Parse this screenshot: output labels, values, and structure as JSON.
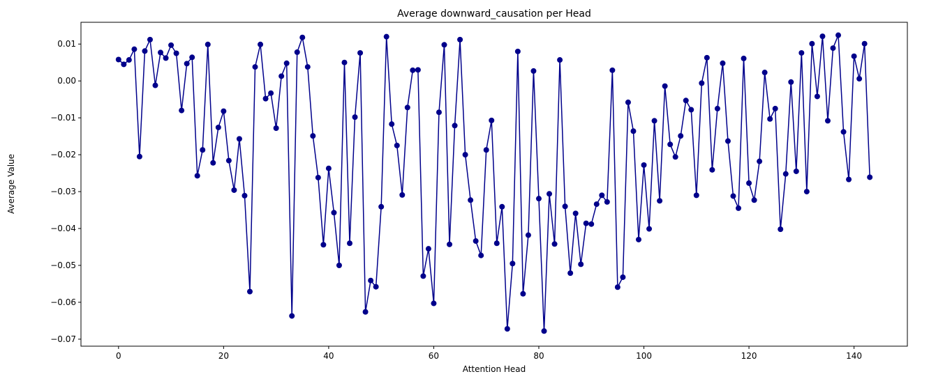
{
  "chart_data": {
    "type": "line",
    "title": "Average downward_causation per Head",
    "xlabel": "Attention Head",
    "ylabel": "Average Value",
    "xlim": [
      -7.15,
      150.15
    ],
    "ylim": [
      -0.0719,
      0.0159
    ],
    "xticks": [
      0,
      20,
      40,
      60,
      80,
      100,
      120,
      140
    ],
    "yticks": [
      -0.07,
      -0.06,
      -0.05,
      -0.04,
      -0.03,
      -0.02,
      -0.01,
      0.0,
      0.01
    ],
    "ytick_labels": [
      "−0.07",
      "−0.06",
      "−0.05",
      "−0.04",
      "−0.03",
      "−0.02",
      "−0.01",
      "0.00",
      "0.01"
    ],
    "xtick_labels": [
      "0",
      "20",
      "40",
      "60",
      "80",
      "100",
      "120",
      "140"
    ],
    "grid": false,
    "marker": "circle",
    "color": "#00008b",
    "series": [
      {
        "x_start": 0,
        "values": [
          0.0058,
          0.0045,
          0.0057,
          0.0086,
          -0.0205,
          0.0081,
          0.0112,
          -0.0012,
          0.0077,
          0.0062,
          0.0097,
          0.0075,
          -0.008,
          0.0047,
          0.0064,
          -0.0257,
          -0.0187,
          0.0099,
          -0.0222,
          -0.0126,
          -0.0082,
          -0.0216,
          -0.0296,
          -0.0157,
          -0.0311,
          -0.0571,
          0.0038,
          0.0099,
          -0.0048,
          -0.0033,
          -0.0128,
          0.0013,
          0.0048,
          -0.0637,
          0.0078,
          0.0118,
          0.0038,
          -0.0149,
          -0.0262,
          -0.0444,
          -0.0237,
          -0.0357,
          -0.05,
          0.005,
          -0.044,
          -0.0098,
          0.0076,
          -0.0626,
          -0.0541,
          -0.0558,
          -0.0341,
          0.012,
          -0.0117,
          -0.0175,
          -0.0309,
          -0.0072,
          0.0029,
          0.003,
          -0.0529,
          -0.0455,
          -0.0603,
          -0.0085,
          0.0098,
          -0.0443,
          -0.0121,
          0.0112,
          -0.02,
          -0.0323,
          -0.0434,
          -0.0473,
          -0.0187,
          -0.0107,
          -0.044,
          -0.0341,
          -0.0672,
          -0.0495,
          0.008,
          -0.0577,
          -0.0418,
          0.0027,
          -0.0319,
          -0.0678,
          -0.0306,
          -0.0442,
          0.0057,
          -0.034,
          -0.0521,
          -0.0359,
          -0.0497,
          -0.0386,
          -0.0388,
          -0.0334,
          -0.031,
          -0.0328,
          0.0029,
          -0.0559,
          -0.0532,
          -0.0058,
          -0.0136,
          -0.043,
          -0.0228,
          -0.0401,
          -0.0108,
          -0.0325,
          -0.0014,
          -0.0172,
          -0.0206,
          -0.0149,
          -0.0053,
          -0.0078,
          -0.031,
          -0.0006,
          0.0063,
          -0.0241,
          -0.0075,
          0.0048,
          -0.0163,
          -0.0312,
          -0.0345,
          0.0061,
          -0.0277,
          -0.0323,
          -0.0218,
          0.0023,
          -0.0103,
          -0.0075,
          -0.0402,
          -0.0252,
          -0.0003,
          -0.0245,
          0.0076,
          -0.03,
          0.0101,
          -0.0042,
          0.0121,
          -0.0108,
          0.0089,
          0.0124,
          -0.0138,
          -0.0267,
          0.0067,
          0.0006,
          0.0101,
          -0.0261
        ]
      }
    ]
  }
}
